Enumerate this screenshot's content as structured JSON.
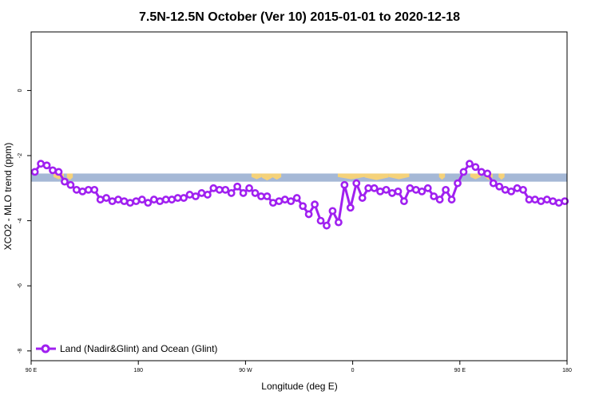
{
  "chart_data": {
    "type": "line",
    "title": "7.5N-12.5N October (Ver 10)   2015-01-01 to 2020-12-18",
    "xlabel": "Longitude (deg E)",
    "ylabel": "XCO2 - MLO trend (ppm)",
    "xlim": [
      90,
      450
    ],
    "ylim": [
      -8.3,
      1.8
    ],
    "x_ticks": [
      {
        "value": 90,
        "label": "90 E"
      },
      {
        "value": 162,
        "label": "180"
      },
      {
        "value": 234,
        "label": "90 W"
      },
      {
        "value": 306,
        "label": "0"
      },
      {
        "value": 378,
        "label": "90 E"
      },
      {
        "value": 450,
        "label": "180"
      }
    ],
    "y_ticks": [
      {
        "value": 0,
        "label": "0"
      },
      {
        "value": -2,
        "label": "-2"
      },
      {
        "value": -4,
        "label": "-4"
      },
      {
        "value": -6,
        "label": "-6"
      },
      {
        "value": -8,
        "label": "-8"
      }
    ],
    "grid": false,
    "legend_position": "bottom-left",
    "series": [
      {
        "name": "Land (Nadir&Glint) and Ocean (Glint)",
        "color": "#a020f0",
        "x": [
          92.5,
          96.5,
          100.5,
          104.5,
          108.5,
          112.5,
          116.5,
          120.5,
          124.5,
          128.5,
          132.5,
          136.5,
          140.5,
          144.5,
          148.5,
          152.5,
          156.5,
          160.5,
          164.5,
          168.5,
          172.5,
          176.5,
          180.5,
          184.5,
          188.5,
          192.5,
          196.5,
          200.5,
          204.5,
          208.5,
          212.5,
          216.5,
          220.5,
          224.5,
          228.5,
          232.5,
          236.5,
          240.5,
          244.5,
          248.5,
          252.5,
          256.5,
          260.5,
          264.5,
          268.5,
          272.5,
          276.5,
          280.5,
          284.5,
          288.5,
          292.5,
          296.5,
          300.5,
          304.5,
          308.5,
          312.5,
          316.5,
          320.5,
          324.5,
          328.5,
          332.5,
          336.5,
          340.5,
          344.5,
          348.5,
          352.5,
          356.5,
          360.5,
          364.5,
          368.5,
          372.5,
          376.5,
          380.5,
          384.5,
          388.5,
          392.5,
          396.5,
          400.5,
          404.5,
          408.5,
          412.5,
          416.5,
          420.5,
          424.5,
          428.5,
          432.5,
          436.5,
          440.5,
          444.5,
          448.5
        ],
        "y": [
          -2.5,
          -2.25,
          -2.3,
          -2.45,
          -2.5,
          -2.8,
          -2.9,
          -3.05,
          -3.1,
          -3.05,
          -3.05,
          -3.35,
          -3.3,
          -3.4,
          -3.35,
          -3.4,
          -3.45,
          -3.4,
          -3.35,
          -3.45,
          -3.35,
          -3.4,
          -3.35,
          -3.35,
          -3.3,
          -3.3,
          -3.2,
          -3.25,
          -3.15,
          -3.2,
          -3.0,
          -3.05,
          -3.05,
          -3.15,
          -2.95,
          -3.15,
          -3.0,
          -3.15,
          -3.25,
          -3.25,
          -3.45,
          -3.4,
          -3.35,
          -3.4,
          -3.3,
          -3.55,
          -3.8,
          -3.5,
          -4.0,
          -4.15,
          -3.7,
          -4.05,
          -2.9,
          -3.6,
          -2.85,
          -3.3,
          -3.0,
          -3.0,
          -3.1,
          -3.05,
          -3.15,
          -3.1,
          -3.4,
          -3.0,
          -3.05,
          -3.1,
          -3.0,
          -3.25,
          -3.35,
          -3.05,
          -3.35,
          -2.85,
          -2.5,
          -2.25,
          -2.35,
          -2.5,
          -2.55,
          -2.85,
          -2.95,
          -3.05,
          -3.1,
          -3.0,
          -3.05,
          -3.35,
          -3.35,
          -3.4,
          -3.35,
          -3.4,
          -3.45,
          -3.4
        ]
      }
    ],
    "band": {
      "color": "#a5b8d6",
      "y_range": [
        -2.55,
        -2.8
      ],
      "land_color": "#f5d27a",
      "land_segments": [
        [
          105,
          112,
          0.2
        ],
        [
          114,
          118,
          0.3
        ],
        [
          238,
          245,
          0.2
        ],
        [
          245,
          252,
          0.35
        ],
        [
          252,
          258,
          0.25
        ],
        [
          296,
          314,
          0.2
        ],
        [
          314,
          330,
          0.3
        ],
        [
          330,
          344,
          0.2
        ],
        [
          364,
          368,
          0.25
        ],
        [
          385,
          392,
          0.2
        ],
        [
          395,
          400,
          0.3
        ],
        [
          404,
          408,
          0.25
        ]
      ]
    }
  }
}
